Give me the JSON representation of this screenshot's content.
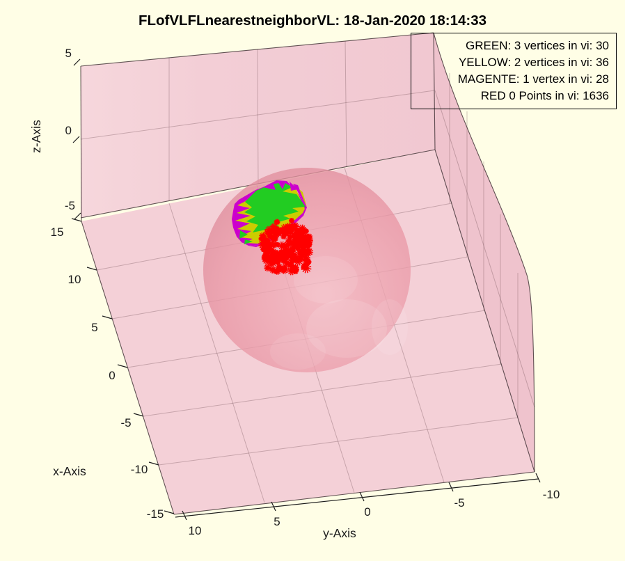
{
  "figure": {
    "title": "FLofVLFLnearestneighborVL: 18-Jan-2020 18:14:33",
    "background_color": "#FFFEE6"
  },
  "legend": {
    "position": "top-right",
    "entries": [
      {
        "label": "GREEN: 3 vertices in vi: 30",
        "color": "#22CC22"
      },
      {
        "label": "YELLOW: 2 vertices in vi: 36",
        "color": "#CCCC00"
      },
      {
        "label": "MAGENTE: 1 vertex in vi: 28",
        "color": "#CC00CC"
      },
      {
        "label": "RED 0 Points in vi: 1636",
        "color": "#FF0000"
      }
    ]
  },
  "axes": {
    "x": {
      "label": "x-Axis",
      "ticks": [
        "15",
        "10",
        "5",
        "0",
        "-5",
        "-10",
        "-15"
      ],
      "range": [
        -15,
        15
      ]
    },
    "y": {
      "label": "y-Axis",
      "ticks": [
        "10",
        "5",
        "0",
        "-5",
        "-10"
      ],
      "range": [
        -10,
        10
      ]
    },
    "z": {
      "label": "z-Axis",
      "ticks": [
        "5",
        "0",
        "-5"
      ],
      "range": [
        -5,
        5
      ]
    }
  },
  "chart_data": {
    "type": "scatter",
    "projection": "3d",
    "title": "FLofVLFLnearestneighborVL: 18-Jan-2020 18:14:33",
    "xlabel": "x-Axis",
    "ylabel": "y-Axis",
    "zlabel": "z-Axis",
    "xlim": [
      -15,
      15
    ],
    "ylim": [
      -10,
      10
    ],
    "zlim": [
      -5,
      5
    ],
    "xticks": [
      15,
      10,
      5,
      0,
      -5,
      -10,
      -15
    ],
    "yticks": [
      10,
      5,
      0,
      -5,
      -10
    ],
    "zticks": [
      5,
      0,
      -5
    ],
    "grid": true,
    "legend_position": "top-right",
    "series": [
      {
        "name": "GREEN: 3 vertices in vi",
        "count": 30,
        "color": "#22CC22",
        "kind": "surface-patch-faces"
      },
      {
        "name": "YELLOW: 2 vertices in vi",
        "count": 36,
        "color": "#CCCC00",
        "kind": "surface-patch-faces"
      },
      {
        "name": "MAGENTE: 1 vertex in vi",
        "count": 28,
        "color": "#CC00CC",
        "kind": "surface-patch-faces"
      },
      {
        "name": "RED 0 Points in vi",
        "count": 1636,
        "color": "#FF0000",
        "kind": "asterisk-markers"
      }
    ],
    "objects": [
      {
        "type": "sphere",
        "style": "translucent red",
        "color": "#E89AA8"
      },
      {
        "type": "fan-patch",
        "colors": [
          "#CC00CC",
          "#CCCC00",
          "#22CC22"
        ],
        "location": "upper-left area of sphere"
      },
      {
        "type": "dense-point-cluster",
        "marker": "*",
        "color": "#FF0000",
        "location": "left-center of sphere, below patch"
      }
    ],
    "box_colors": {
      "walls": "#F3CED6",
      "right_wall": "#EFC3CD",
      "floor": "#F4D0D7"
    }
  }
}
